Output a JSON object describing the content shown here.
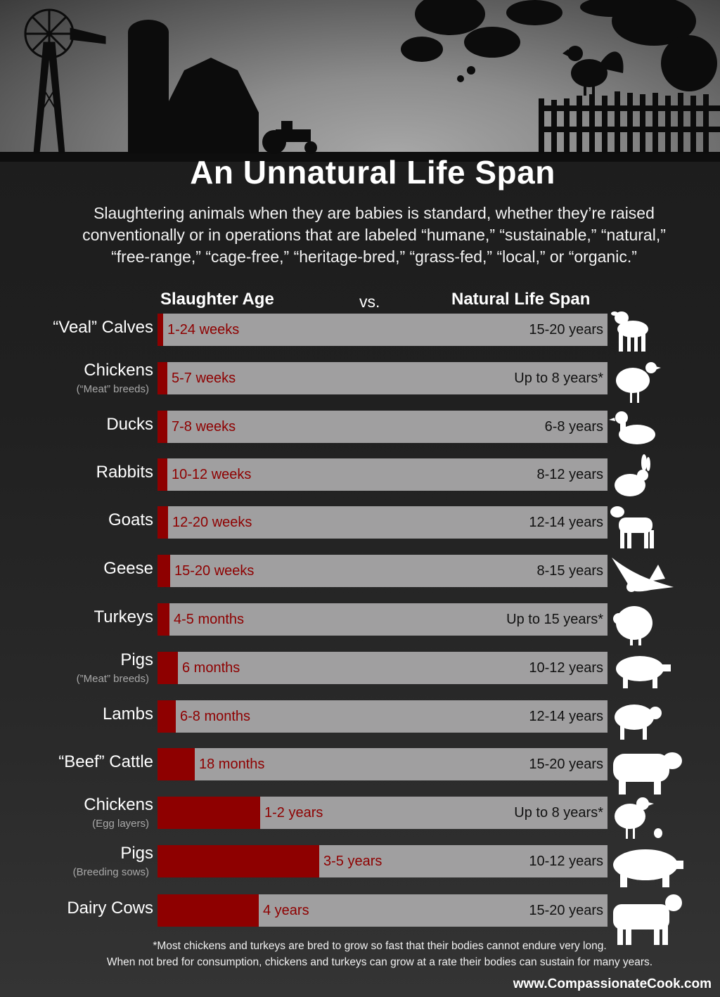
{
  "title": "An Unnatural Life Span",
  "intro_lines": [
    "Slaughtering animals when they are babies is standard, whether they’re raised",
    "conventionally or in operations that are labeled “humane,” “sustainable,” “natural,”",
    "“free-range,” “cage-free,” “heritage-bred,” “grass-fed,” “local,” or “organic.”"
  ],
  "headers": {
    "slaughter": "Slaughter Age",
    "vs": "vs.",
    "natural": "Natural Life Span"
  },
  "colors": {
    "slaughter_bar": "#8e0000",
    "lifespan_bar": "#a09fa0",
    "background": "#202020"
  },
  "chart_data": {
    "type": "bar",
    "orientation": "horizontal",
    "series": [
      {
        "name": "Slaughter Age",
        "fraction_of_bar": [
          0.012,
          0.022,
          0.022,
          0.022,
          0.024,
          0.028,
          0.026,
          0.045,
          0.041,
          0.083,
          0.228,
          0.36,
          0.225
        ]
      },
      {
        "name": "Natural Life Span",
        "fraction_of_bar": [
          1,
          1,
          1,
          1,
          1,
          1,
          1,
          1,
          1,
          1,
          1,
          1,
          1
        ]
      }
    ],
    "rows": [
      {
        "animal": "“Veal” Calves",
        "sub": "",
        "slaughter": "1-24 weeks",
        "lifespan": "15-20 years",
        "icon": "calf-icon"
      },
      {
        "animal": "Chickens",
        "sub": "(“Meat” breeds)",
        "slaughter": "5-7 weeks",
        "lifespan": "Up to 8 years*",
        "icon": "chicken-icon"
      },
      {
        "animal": "Ducks",
        "sub": "",
        "slaughter": "7-8 weeks",
        "lifespan": "6-8 years",
        "icon": "duck-icon"
      },
      {
        "animal": "Rabbits",
        "sub": "",
        "slaughter": "10-12 weeks",
        "lifespan": "8-12 years",
        "icon": "rabbit-icon"
      },
      {
        "animal": "Goats",
        "sub": "",
        "slaughter": "12-20 weeks",
        "lifespan": "12-14 years",
        "icon": "goat-icon"
      },
      {
        "animal": "Geese",
        "sub": "",
        "slaughter": "15-20 weeks",
        "lifespan": "8-15 years",
        "icon": "goose-icon"
      },
      {
        "animal": "Turkeys",
        "sub": "",
        "slaughter": "4-5 months",
        "lifespan": "Up to 15 years*",
        "icon": "turkey-icon"
      },
      {
        "animal": "Pigs",
        "sub": "(”Meat” breeds)",
        "slaughter": "6 months",
        "lifespan": "10-12 years",
        "icon": "pig-icon"
      },
      {
        "animal": "Lambs",
        "sub": "",
        "slaughter": "6-8 months",
        "lifespan": "12-14 years",
        "icon": "lamb-icon"
      },
      {
        "animal": "“Beef” Cattle",
        "sub": "",
        "slaughter": "18 months",
        "lifespan": "15-20 years",
        "icon": "bull-icon"
      },
      {
        "animal": "Chickens",
        "sub": "(Egg layers)",
        "slaughter": "1-2 years",
        "lifespan": "Up to 8 years*",
        "icon": "hen-icon"
      },
      {
        "animal": "Pigs",
        "sub": "(Breeding sows)",
        "slaughter": "3-5 years",
        "lifespan": "10-12 years",
        "icon": "sow-icon"
      },
      {
        "animal": "Dairy Cows",
        "sub": "",
        "slaughter": "4 years",
        "lifespan": "15-20 years",
        "icon": "cow-icon"
      }
    ]
  },
  "footnote_lines": [
    "*Most chickens and turkeys are bred to grow so fast that their bodies cannot endure very long.",
    "When not bred for consumption, chickens and turkeys can grow at a rate their bodies can sustain for many years."
  ],
  "website": "www.CompassionateCook.com",
  "scenery_icons": [
    "windmill-icon",
    "silo-icon",
    "barn-icon",
    "tractor-icon",
    "rooster-icon",
    "fence-icon",
    "tree-branches-icon"
  ]
}
